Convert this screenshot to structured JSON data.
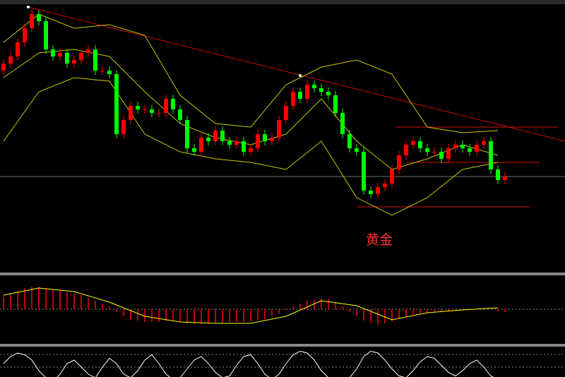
{
  "chart_data": {
    "type": "candlestick",
    "annotation": "黄金",
    "ylim": [
      0,
      385
    ],
    "open": [
      285,
      295,
      305,
      325,
      345,
      365,
      355,
      315,
      305,
      310,
      295,
      300,
      310,
      315,
      285,
      285,
      280,
      195,
      215,
      235,
      230,
      230,
      225,
      225,
      245,
      230,
      215,
      175,
      170,
      190,
      185,
      200,
      185,
      180,
      185,
      170,
      175,
      195,
      185,
      190,
      215,
      235,
      255,
      245,
      265,
      260,
      255,
      250,
      225,
      195,
      175,
      170,
      115,
      110,
      120,
      125,
      145,
      165,
      180,
      185,
      175,
      170,
      170,
      160,
      175,
      180,
      175,
      170,
      180,
      185,
      145,
      130
    ],
    "high": [
      301,
      311,
      331,
      351,
      371,
      371,
      361,
      321,
      316,
      316,
      306,
      316,
      321,
      321,
      291,
      291,
      286,
      221,
      241,
      241,
      236,
      236,
      231,
      251,
      251,
      236,
      221,
      181,
      196,
      196,
      206,
      206,
      191,
      191,
      191,
      181,
      201,
      201,
      196,
      221,
      241,
      261,
      261,
      271,
      271,
      266,
      261,
      256,
      231,
      201,
      181,
      176,
      121,
      126,
      131,
      151,
      171,
      186,
      191,
      191,
      181,
      176,
      176,
      181,
      186,
      186,
      181,
      186,
      191,
      191,
      151,
      141
    ],
    "low": [
      279,
      289,
      299,
      319,
      339,
      349,
      309,
      299,
      299,
      289,
      289,
      294,
      304,
      279,
      279,
      274,
      189,
      189,
      209,
      224,
      224,
      219,
      219,
      219,
      224,
      209,
      169,
      164,
      164,
      179,
      179,
      179,
      174,
      174,
      164,
      164,
      169,
      179,
      179,
      184,
      209,
      229,
      239,
      239,
      254,
      249,
      244,
      219,
      189,
      169,
      164,
      109,
      104,
      104,
      114,
      119,
      139,
      159,
      174,
      169,
      164,
      164,
      154,
      154,
      169,
      169,
      164,
      164,
      174,
      139,
      124,
      124
    ],
    "close": [
      295,
      305,
      325,
      345,
      365,
      355,
      315,
      305,
      310,
      295,
      300,
      310,
      315,
      285,
      285,
      280,
      195,
      215,
      235,
      230,
      230,
      225,
      225,
      245,
      230,
      215,
      175,
      170,
      190,
      185,
      200,
      185,
      180,
      185,
      170,
      175,
      195,
      185,
      190,
      215,
      235,
      255,
      245,
      265,
      260,
      255,
      250,
      225,
      195,
      175,
      170,
      115,
      110,
      120,
      125,
      145,
      165,
      180,
      185,
      175,
      170,
      170,
      160,
      175,
      180,
      175,
      170,
      180,
      185,
      145,
      130,
      135
    ],
    "up_color": "#ff0000",
    "down_color": "#00ff00",
    "bands": {
      "color": "#c8c800",
      "x": [
        0,
        5,
        10,
        15,
        20,
        25,
        30,
        35,
        40,
        45,
        50,
        55,
        60,
        65,
        70
      ],
      "upper": [
        325,
        365,
        345,
        350,
        335,
        250,
        210,
        205,
        265,
        290,
        300,
        280,
        205,
        197,
        200
      ],
      "middle": [
        275,
        310,
        315,
        305,
        255,
        210,
        190,
        180,
        195,
        245,
        185,
        145,
        160,
        180,
        165
      ],
      "lower": [
        185,
        255,
        275,
        270,
        195,
        170,
        160,
        155,
        145,
        185,
        105,
        80,
        105,
        145,
        155
      ]
    },
    "macd": {
      "ylim": [
        -48,
        48
      ],
      "color": "#ff0000",
      "histogram": [
        18,
        22,
        26,
        30,
        32,
        32,
        30,
        28,
        26,
        24,
        22,
        20,
        16,
        12,
        8,
        4,
        -4,
        -10,
        -14,
        -16,
        -18,
        -18,
        -18,
        -17,
        -16,
        -18,
        -20,
        -21,
        -20,
        -20,
        -19,
        -19,
        -18,
        -18,
        -18,
        -17,
        -16,
        -14,
        -10,
        -6,
        -2,
        4,
        8,
        12,
        14,
        15,
        14,
        10,
        4,
        -4,
        -10,
        -16,
        -20,
        -22,
        -20,
        -17,
        -14,
        -10,
        -8,
        -6,
        -5,
        -4,
        -3,
        -2,
        -1,
        0,
        0,
        1,
        2,
        0,
        -3,
        -4
      ],
      "signal_color": "#ffff00",
      "signal_x": [
        0,
        5,
        10,
        15,
        20,
        25,
        30,
        35,
        40,
        45,
        50,
        55,
        60,
        65,
        70
      ],
      "signal": [
        20,
        30,
        25,
        10,
        -10,
        -18,
        -20,
        -20,
        -10,
        12,
        5,
        -15,
        -5,
        -1,
        2
      ]
    },
    "stochastic": {
      "ylim": [
        0,
        100
      ],
      "color": "#ffffff",
      "values": [
        60,
        80,
        90,
        85,
        70,
        40,
        20,
        10,
        30,
        60,
        70,
        50,
        30,
        20,
        50,
        75,
        60,
        30,
        20,
        40,
        70,
        85,
        60,
        30,
        15,
        20,
        45,
        70,
        80,
        60,
        35,
        20,
        25,
        55,
        80,
        85,
        60,
        30,
        15,
        30,
        60,
        85,
        95,
        90,
        70,
        40,
        20,
        15,
        10,
        20,
        45,
        80,
        95,
        90,
        70,
        45,
        25,
        20,
        40,
        65,
        80,
        75,
        55,
        35,
        25,
        40,
        60,
        70,
        50,
        25,
        15,
        20
      ]
    }
  }
}
